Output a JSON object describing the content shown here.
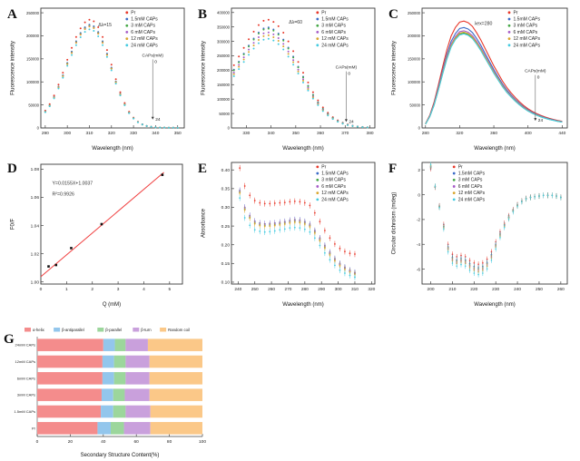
{
  "figure": {
    "background": "#ffffff"
  },
  "chart_data": [
    {
      "panel": "A",
      "type": "scatter",
      "marker": "dot",
      "dot_r": 1.0,
      "xlabel": "Wavelength (nm)",
      "ylabel": "Fluorescence intensity",
      "xlim": [
        288,
        353
      ],
      "ylim": [
        0,
        260000
      ],
      "xticks": [
        290,
        300,
        310,
        320,
        330,
        340,
        350
      ],
      "yticks": [
        0,
        50000,
        100000,
        150000,
        200000,
        250000
      ],
      "ytick_font": 4.2,
      "annotations": [
        {
          "text": "Δλ=15",
          "fx": 0.4,
          "fy": 0.15
        }
      ],
      "caps_arrow": {
        "title": "CAPs(mM)",
        "top": "0",
        "bottom": "24",
        "fx": 0.78,
        "fy0": 0.42,
        "fy1": 0.93
      },
      "legend": {
        "fx": 0.6,
        "fy": 0.01
      },
      "x": [
        290,
        292,
        294,
        296,
        298,
        300,
        302,
        304,
        306,
        308,
        310,
        312,
        314,
        316,
        318,
        320,
        322,
        324,
        326,
        328,
        330,
        332,
        334,
        336,
        338,
        340,
        342,
        344,
        346,
        348,
        350
      ],
      "shape": [
        0.16,
        0.22,
        0.3,
        0.4,
        0.51,
        0.63,
        0.74,
        0.84,
        0.92,
        0.975,
        1.0,
        0.985,
        0.93,
        0.84,
        0.72,
        0.585,
        0.45,
        0.33,
        0.23,
        0.15,
        0.095,
        0.058,
        0.034,
        0.019,
        0.011,
        0.006,
        0.004,
        0.003,
        0.002,
        0.002,
        0.001
      ],
      "series": [
        {
          "name": "Pr",
          "color": "#e8392b",
          "peak": 235000
        },
        {
          "name": "1.5mM CAPs",
          "color": "#3b6bc7",
          "peak": 224000
        },
        {
          "name": "3 mM CAPs",
          "color": "#46a847",
          "peak": 222000
        },
        {
          "name": "6 mM CAPs",
          "color": "#a65cc8",
          "peak": 221000
        },
        {
          "name": "12 mM CAPs",
          "color": "#d9a62e",
          "peak": 220000
        },
        {
          "name": "24 mM CAPs",
          "color": "#45cbe0",
          "peak": 214000
        }
      ]
    },
    {
      "panel": "B",
      "type": "scatter",
      "marker": "dot",
      "dot_r": 1.0,
      "xlabel": "Wavelength (nm)",
      "ylabel": "Fluorescence intensity",
      "xlim": [
        324,
        382
      ],
      "ylim": [
        0,
        415000
      ],
      "xticks": [
        330,
        340,
        350,
        360,
        370,
        380
      ],
      "yticks": [
        0,
        50000,
        100000,
        150000,
        200000,
        250000,
        300000,
        350000,
        400000
      ],
      "ytick_font": 4.2,
      "annotations": [
        {
          "text": "Δλ=60",
          "fx": 0.4,
          "fy": 0.13
        }
      ],
      "caps_arrow": {
        "title": "CAPs(mM)",
        "top": "0",
        "bottom": "24",
        "fx": 0.8,
        "fy0": 0.52,
        "fy1": 0.95
      },
      "legend": {
        "fx": 0.6,
        "fy": 0.01
      },
      "x": [
        325,
        327,
        329,
        331,
        333,
        335,
        337,
        339,
        341,
        343,
        345,
        347,
        349,
        351,
        353,
        355,
        357,
        359,
        361,
        363,
        365,
        367,
        369,
        371,
        373,
        375,
        377,
        379
      ],
      "shape": [
        0.58,
        0.66,
        0.74,
        0.82,
        0.89,
        0.95,
        0.99,
        1.0,
        0.98,
        0.94,
        0.88,
        0.8,
        0.71,
        0.61,
        0.51,
        0.42,
        0.33,
        0.255,
        0.19,
        0.14,
        0.1,
        0.07,
        0.048,
        0.032,
        0.021,
        0.014,
        0.009,
        0.006
      ],
      "series": [
        {
          "name": "Pr",
          "color": "#e8392b",
          "peak": 375000
        },
        {
          "name": "1.5mM CAPs",
          "color": "#3b6bc7",
          "peak": 348000
        },
        {
          "name": "3 mM CAPs",
          "color": "#46a847",
          "peak": 344000
        },
        {
          "name": "6 mM CAPs",
          "color": "#a65cc8",
          "peak": 331000
        },
        {
          "name": "12 mM CAPs",
          "color": "#d9a62e",
          "peak": 321000
        },
        {
          "name": "24 mM CAPs",
          "color": "#45cbe0",
          "peak": 309000
        }
      ]
    },
    {
      "panel": "C",
      "type": "scatter",
      "marker": "line",
      "xlabel": "Wavelength (nm)",
      "ylabel": "Fluorescence intensity",
      "xlim": [
        276,
        446
      ],
      "ylim": [
        0,
        260000
      ],
      "xticks": [
        280,
        320,
        360,
        400,
        440
      ],
      "yticks": [
        0,
        50000,
        100000,
        150000,
        200000,
        250000
      ],
      "ytick_font": 4.2,
      "annotations": [
        {
          "text": "λex=280",
          "fx": 0.36,
          "fy": 0.14
        }
      ],
      "caps_arrow": {
        "title": "CAPs(mM)",
        "top": "0",
        "bottom": "24",
        "fx": 0.78,
        "fy0": 0.55,
        "fy1": 0.94
      },
      "legend": {
        "fx": 0.6,
        "fy": 0.01
      },
      "x": [
        280,
        285,
        290,
        295,
        300,
        305,
        310,
        315,
        320,
        325,
        330,
        335,
        340,
        345,
        350,
        355,
        360,
        365,
        370,
        375,
        380,
        385,
        390,
        395,
        400,
        405,
        410,
        415,
        420,
        425,
        430,
        435,
        440
      ],
      "shape": [
        0.04,
        0.12,
        0.24,
        0.4,
        0.57,
        0.73,
        0.86,
        0.94,
        0.99,
        1.0,
        0.985,
        0.95,
        0.89,
        0.82,
        0.74,
        0.66,
        0.58,
        0.51,
        0.44,
        0.38,
        0.33,
        0.285,
        0.245,
        0.21,
        0.18,
        0.155,
        0.135,
        0.118,
        0.103,
        0.09,
        0.08,
        0.07,
        0.062
      ],
      "series": [
        {
          "name": "Pr",
          "color": "#e8392b",
          "peak": 232000
        },
        {
          "name": "1.5mM CAPs",
          "color": "#3b6bc7",
          "peak": 218000
        },
        {
          "name": "3 mM CAPs",
          "color": "#46a847",
          "peak": 206000
        },
        {
          "name": "6 mM CAPs",
          "color": "#a65cc8",
          "peak": 211000
        },
        {
          "name": "12 mM CAPs",
          "color": "#d9a62e",
          "peak": 208000
        },
        {
          "name": "24 mM CAPs",
          "color": "#45cbe0",
          "peak": 204000
        }
      ]
    },
    {
      "panel": "D",
      "type": "fit",
      "xlabel": "Q (mM)",
      "ylabel": "F0/F",
      "xlim": [
        0,
        5.5
      ],
      "ylim": [
        0.9985,
        1.0835
      ],
      "xticks": [
        0,
        1,
        2,
        3,
        4,
        5
      ],
      "yticks": [
        "1.00",
        "1.02",
        "1.04",
        "1.06",
        "1.08"
      ],
      "annotations": [
        {
          "text": "Y=0.0155X+1.0037",
          "fx": 0.08,
          "fy": 0.17
        },
        {
          "text": "R²=0.9926",
          "fx": 0.08,
          "fy": 0.26
        }
      ],
      "points": [
        [
          0.3,
          1.011
        ],
        [
          0.59,
          1.012
        ],
        [
          1.18,
          1.024
        ],
        [
          2.36,
          1.041
        ],
        [
          4.72,
          1.076
        ]
      ],
      "fit": {
        "slope": 0.0155,
        "intercept": 1.0037,
        "x0": 0,
        "x1": 4.78,
        "color": "#f04040"
      }
    },
    {
      "panel": "E",
      "type": "scatter",
      "marker": "dot",
      "dot_r": 0.9,
      "errbar": 0.008,
      "xlabel": "Wavelength (nm)",
      "ylabel": "Absorbance",
      "xlim": [
        236,
        322
      ],
      "ylim": [
        0.095,
        0.42
      ],
      "xticks": [
        240,
        250,
        260,
        270,
        280,
        290,
        300,
        310,
        320
      ],
      "yticks": [
        "0.10",
        "0.15",
        "0.20",
        "0.25",
        "0.30",
        "0.35",
        "0.40"
      ],
      "legend": {
        "fx": 0.6,
        "fy": 0.01
      },
      "x": [
        241,
        244,
        247,
        250,
        253,
        256,
        259,
        262,
        265,
        268,
        271,
        274,
        277,
        280,
        283,
        286,
        289,
        292,
        295,
        298,
        301,
        304,
        307,
        310
      ],
      "series": [
        {
          "name": "Pr",
          "color": "#e8392b",
          "values": [
            0.405,
            0.357,
            0.332,
            0.318,
            0.312,
            0.31,
            0.31,
            0.311,
            0.312,
            0.313,
            0.315,
            0.316,
            0.315,
            0.312,
            0.305,
            0.285,
            0.262,
            0.238,
            0.218,
            0.202,
            0.19,
            0.182,
            0.177,
            0.175
          ]
        },
        {
          "name": "1.5mM CAPs",
          "color": "#3b6bc7",
          "values": [
            0.345,
            0.3,
            0.278,
            0.263,
            0.258,
            0.256,
            0.257,
            0.258,
            0.26,
            0.262,
            0.265,
            0.267,
            0.266,
            0.262,
            0.255,
            0.238,
            0.218,
            0.198,
            0.18,
            0.163,
            0.15,
            0.14,
            0.132,
            0.126
          ]
        },
        {
          "name": "3 mM CAPs",
          "color": "#46a847",
          "values": [
            0.341,
            0.296,
            0.274,
            0.259,
            0.254,
            0.252,
            0.253,
            0.254,
            0.256,
            0.258,
            0.261,
            0.263,
            0.262,
            0.258,
            0.251,
            0.234,
            0.214,
            0.194,
            0.176,
            0.16,
            0.147,
            0.137,
            0.129,
            0.123
          ]
        },
        {
          "name": "6 mM CAPs",
          "color": "#a65cc8",
          "values": [
            0.343,
            0.298,
            0.276,
            0.261,
            0.256,
            0.254,
            0.255,
            0.256,
            0.258,
            0.26,
            0.263,
            0.265,
            0.264,
            0.26,
            0.253,
            0.236,
            0.216,
            0.196,
            0.178,
            0.161,
            0.148,
            0.138,
            0.13,
            0.124
          ]
        },
        {
          "name": "12 mM CAPs",
          "color": "#d9a62e",
          "values": [
            0.338,
            0.293,
            0.271,
            0.256,
            0.251,
            0.249,
            0.25,
            0.251,
            0.253,
            0.255,
            0.258,
            0.26,
            0.259,
            0.255,
            0.248,
            0.231,
            0.211,
            0.191,
            0.173,
            0.157,
            0.144,
            0.134,
            0.127,
            0.121
          ]
        },
        {
          "name": "24 mM CAPs",
          "color": "#45cbe0",
          "values": [
            0.325,
            0.272,
            0.252,
            0.24,
            0.236,
            0.234,
            0.235,
            0.237,
            0.24,
            0.242,
            0.245,
            0.246,
            0.245,
            0.241,
            0.234,
            0.218,
            0.198,
            0.178,
            0.16,
            0.145,
            0.132,
            0.124,
            0.118,
            0.113
          ]
        }
      ]
    },
    {
      "panel": "F",
      "type": "scatter",
      "marker": "dot",
      "dot_r": 0.8,
      "errbar": 0.22,
      "xlabel": "Wavelength (nm)",
      "ylabel": "Circular dichroism (mdeg)",
      "xlim": [
        196,
        263
      ],
      "ylim": [
        -7.2,
        2.6
      ],
      "xticks": [
        200,
        210,
        220,
        230,
        240,
        250,
        260
      ],
      "yticks": [
        -6,
        -4,
        -2,
        0,
        2
      ],
      "legend": {
        "fx": 0.22,
        "fy": 0.01
      },
      "x": [
        200,
        202,
        204,
        206,
        208,
        210,
        212,
        214,
        216,
        218,
        220,
        222,
        224,
        226,
        228,
        230,
        232,
        234,
        236,
        238,
        240,
        242,
        244,
        246,
        248,
        250,
        252,
        254,
        256,
        258,
        260
      ],
      "base": [
        2.1,
        0.6,
        -0.9,
        -2.4,
        -4.0,
        -4.8,
        -5.0,
        -4.9,
        -5.0,
        -5.3,
        -5.5,
        -5.6,
        -5.5,
        -5.2,
        -4.6,
        -3.8,
        -3.0,
        -2.3,
        -1.7,
        -1.2,
        -0.8,
        -0.5,
        -0.3,
        -0.2,
        -0.15,
        -0.1,
        -0.05,
        -0.05,
        -0.05,
        -0.1,
        -0.2
      ],
      "series": [
        {
          "name": "Pr",
          "color": "#e8392b",
          "scale": 1.0
        },
        {
          "name": "1.5mM CAPs",
          "color": "#3b6bc7",
          "scale": 1.05
        },
        {
          "name": "3 mM CAPs",
          "color": "#46a847",
          "scale": 1.07
        },
        {
          "name": "6 mM CAPs",
          "color": "#a65cc8",
          "scale": 1.09
        },
        {
          "name": "12 mM CAPs",
          "color": "#d9a62e",
          "scale": 1.11
        },
        {
          "name": "24 mM CAPs",
          "color": "#45cbe0",
          "scale": 1.15
        }
      ]
    },
    {
      "panel": "G",
      "type": "hbar",
      "xlabel": "Secondary Structure Content(%)",
      "xlim": [
        0,
        100
      ],
      "xticks": [
        0,
        20,
        40,
        60,
        80,
        100
      ],
      "categories": [
        "24mM CAPs",
        "12mM CAPs",
        "6mM CAPs",
        "3mM CAPs",
        "1.5mM CAPs",
        "Pr"
      ],
      "series": [
        {
          "name": "α-helix",
          "color": "#f48c8c",
          "values": [
            40,
            39.5,
            39.5,
            39,
            38.5,
            36.5
          ]
        },
        {
          "name": "β-antiparallel",
          "color": "#93c6ec",
          "values": [
            7,
            7,
            7,
            7,
            7.5,
            8
          ]
        },
        {
          "name": "β-parallel",
          "color": "#9cd69c",
          "values": [
            6.5,
            7,
            7,
            7,
            7.5,
            8
          ]
        },
        {
          "name": "β-turn",
          "color": "#c9a0dc",
          "values": [
            13.5,
            14.5,
            14.5,
            15,
            15,
            16
          ]
        },
        {
          "name": "Random coil",
          "color": "#fbc888",
          "values": [
            33,
            32,
            32,
            32,
            31.5,
            31.5
          ]
        }
      ]
    }
  ]
}
